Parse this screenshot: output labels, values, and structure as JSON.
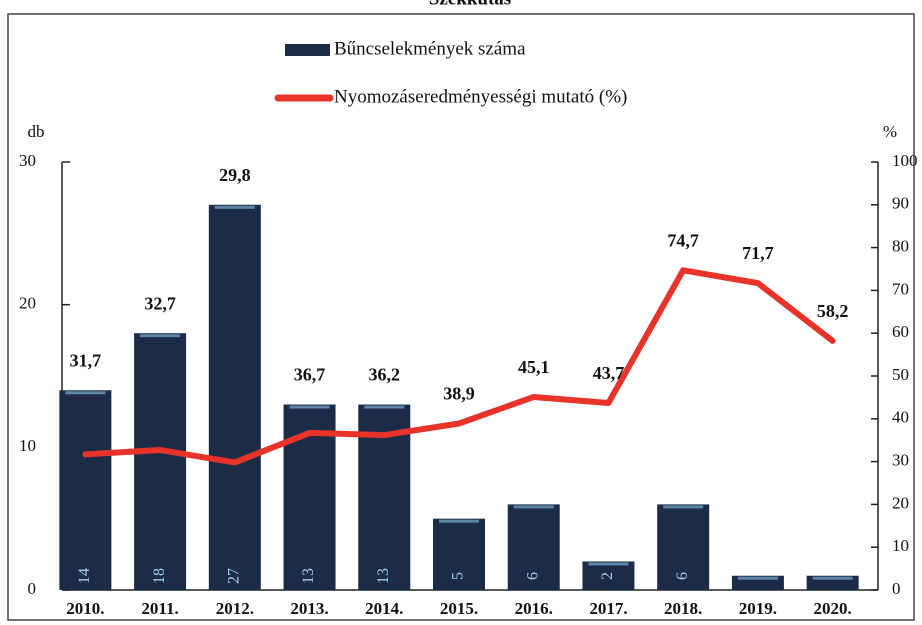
{
  "chart_data": {
    "type": "bar",
    "title": "Szekkutas",
    "y_label": "db",
    "y2_label": "%",
    "categories": [
      "2010.",
      "2011.",
      "2012.",
      "2013.",
      "2014.",
      "2015.",
      "2016.",
      "2017.",
      "2018.",
      "2019.",
      "2020."
    ],
    "series": [
      {
        "name": "Bűncselekmények száma",
        "type": "bar",
        "color": "#1c2b46",
        "values": [
          14,
          18,
          27,
          13,
          13,
          5,
          6,
          2,
          6,
          1,
          1
        ],
        "value_labels": [
          "14",
          "18",
          "27",
          "13",
          "13",
          "5",
          "6",
          "2",
          "6",
          null,
          null
        ]
      },
      {
        "name": "Nyomozáseredményességi mutató (%)",
        "type": "line",
        "color": "#e8332b",
        "axis": "y2",
        "values": [
          31.7,
          32.7,
          29.8,
          36.7,
          36.2,
          38.9,
          45.1,
          43.7,
          74.7,
          71.7,
          58.2
        ],
        "value_labels": [
          "31,7",
          "32,7",
          "29,8",
          "36,7",
          "36,2",
          "38,9",
          "45,1",
          "43,7",
          "74,7",
          "71,7",
          "58,2"
        ]
      }
    ],
    "ylim": [
      0,
      30
    ],
    "yticks": [
      0,
      10,
      20,
      30
    ],
    "y2lim": [
      0,
      100
    ],
    "y2ticks": [
      0,
      10,
      20,
      30,
      40,
      50,
      60,
      70,
      80,
      90,
      100
    ],
    "legend": "top"
  }
}
